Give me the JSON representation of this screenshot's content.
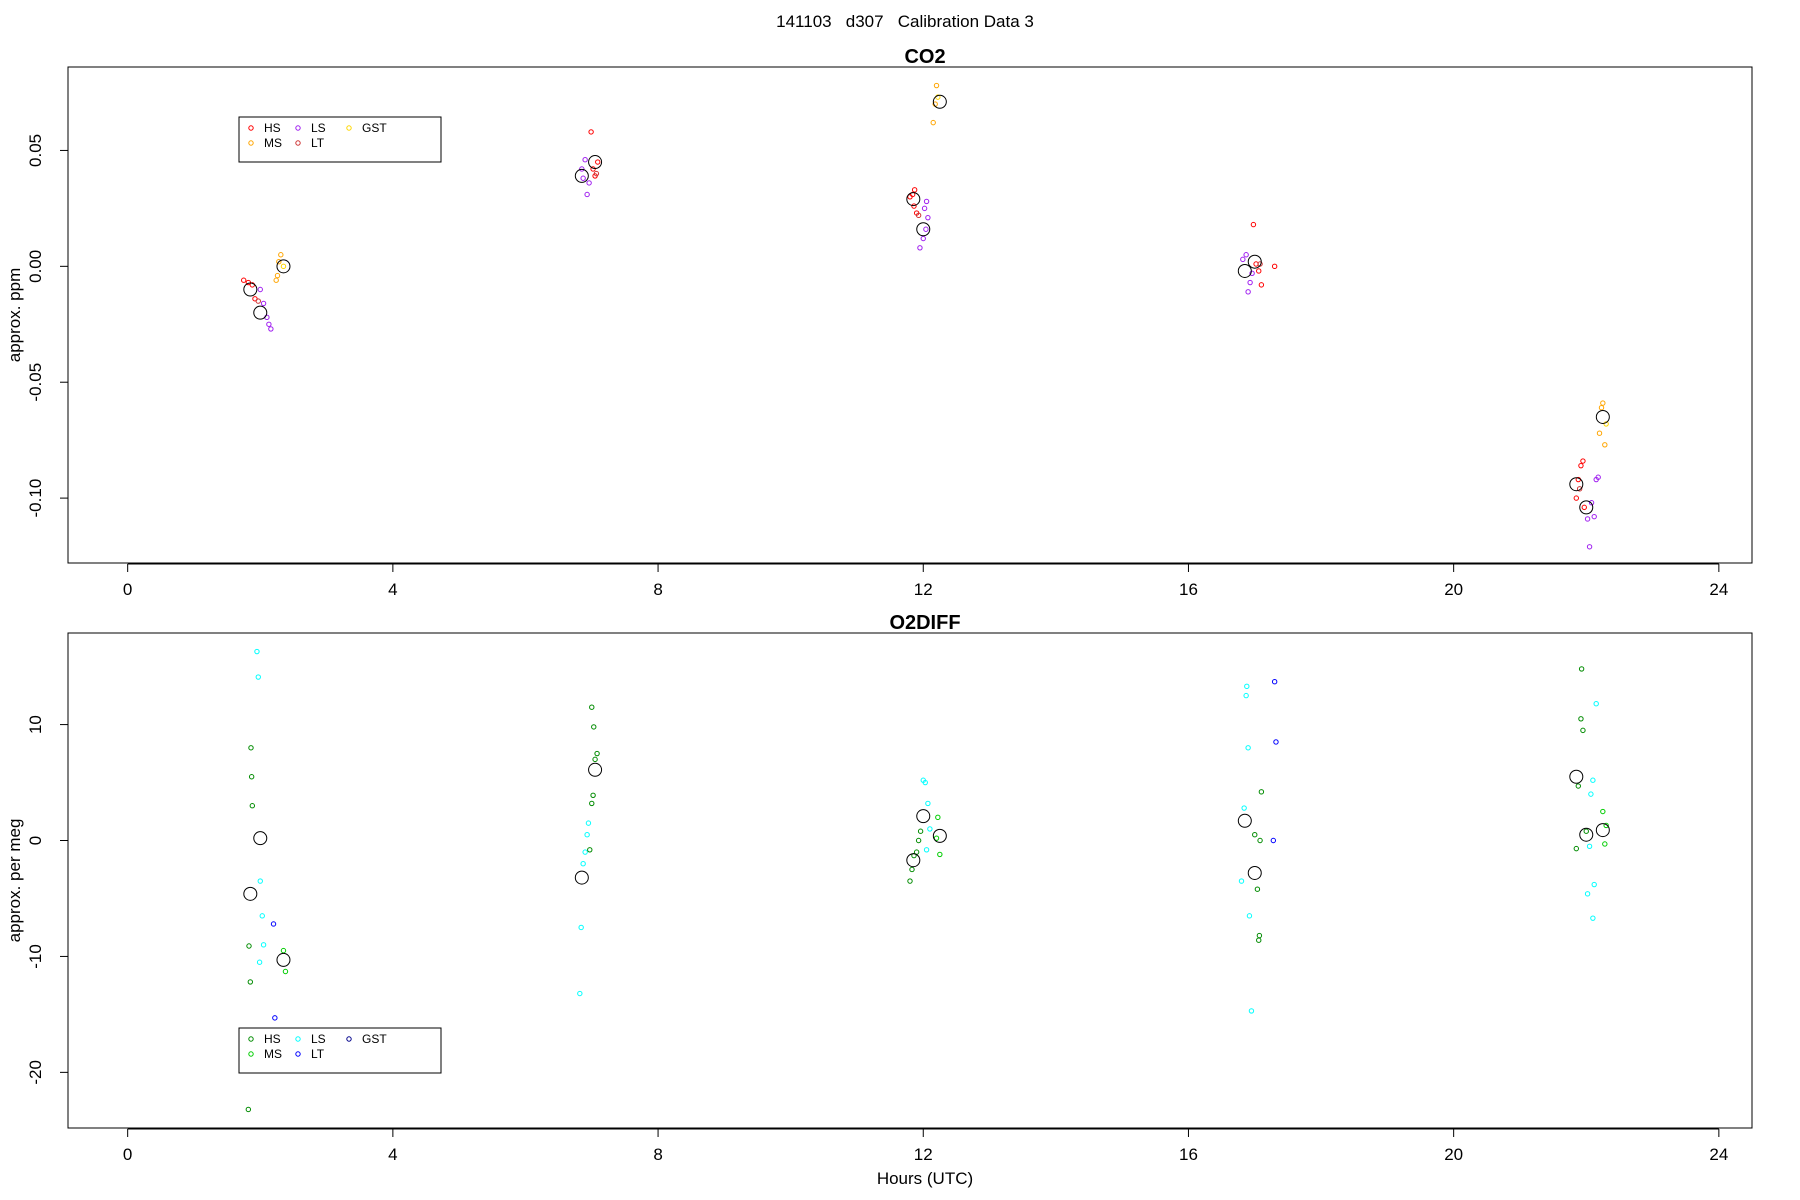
{
  "figure": {
    "suptitle": "141103   d307   Calibration Data 3"
  },
  "chart_data": [
    {
      "type": "scatter",
      "title": "CO2",
      "xlabel": "",
      "ylabel": "approx. ppm",
      "xlim": [
        -0.9,
        24.5
      ],
      "ylim": [
        -0.128,
        0.086
      ],
      "xticks": [
        0,
        4,
        8,
        12,
        16,
        20,
        24
      ],
      "yticks": [
        -0.1,
        -0.05,
        0.0,
        0.05
      ],
      "ytick_labels": [
        "-0.10",
        "-0.05",
        "0.00",
        "0.05"
      ],
      "grid": false,
      "legend": {
        "placement": "top-left",
        "entries": [
          {
            "name": "HS",
            "color": "#ff0000"
          },
          {
            "name": "MS",
            "color": "#ffa500"
          },
          {
            "name": "LS",
            "color": "#a020f0"
          },
          {
            "name": "LT",
            "color": "#cd3333"
          },
          {
            "name": "GST",
            "color": "#ffd700"
          }
        ]
      },
      "points": [
        {
          "x": 1.75,
          "y": -0.006,
          "c": "#ff0000"
        },
        {
          "x": 1.82,
          "y": -0.007,
          "c": "#ff0000"
        },
        {
          "x": 1.88,
          "y": -0.008,
          "c": "#ff0000"
        },
        {
          "x": 1.92,
          "y": -0.014,
          "c": "#ff0000"
        },
        {
          "x": 1.97,
          "y": -0.015,
          "c": "#cd3333"
        },
        {
          "x": 2.0,
          "y": -0.01,
          "c": "#a020f0"
        },
        {
          "x": 2.05,
          "y": -0.016,
          "c": "#a020f0"
        },
        {
          "x": 2.1,
          "y": -0.022,
          "c": "#a020f0"
        },
        {
          "x": 2.13,
          "y": -0.025,
          "c": "#a020f0"
        },
        {
          "x": 2.16,
          "y": -0.027,
          "c": "#a020f0"
        },
        {
          "x": 2.28,
          "y": 0.002,
          "c": "#ffa500"
        },
        {
          "x": 2.31,
          "y": 0.005,
          "c": "#ffa500"
        },
        {
          "x": 2.26,
          "y": -0.004,
          "c": "#ffa500"
        },
        {
          "x": 2.24,
          "y": -0.006,
          "c": "#ffa500"
        },
        {
          "x": 2.35,
          "y": 0.0,
          "c": "#ffd700"
        },
        {
          "x": 6.85,
          "y": 0.042,
          "c": "#a020f0"
        },
        {
          "x": 6.9,
          "y": 0.046,
          "c": "#a020f0"
        },
        {
          "x": 6.93,
          "y": 0.031,
          "c": "#a020f0"
        },
        {
          "x": 6.87,
          "y": 0.038,
          "c": "#a020f0"
        },
        {
          "x": 6.96,
          "y": 0.036,
          "c": "#a020f0"
        },
        {
          "x": 6.99,
          "y": 0.058,
          "c": "#ff0000"
        },
        {
          "x": 7.02,
          "y": 0.042,
          "c": "#ff0000"
        },
        {
          "x": 7.05,
          "y": 0.039,
          "c": "#ff0000"
        },
        {
          "x": 7.07,
          "y": 0.04,
          "c": "#cd3333"
        },
        {
          "x": 7.09,
          "y": 0.045,
          "c": "#ff0000"
        },
        {
          "x": 11.8,
          "y": 0.03,
          "c": "#ff0000"
        },
        {
          "x": 11.84,
          "y": 0.031,
          "c": "#ff0000"
        },
        {
          "x": 11.87,
          "y": 0.033,
          "c": "#ff0000"
        },
        {
          "x": 11.9,
          "y": 0.023,
          "c": "#ff0000"
        },
        {
          "x": 11.93,
          "y": 0.022,
          "c": "#cd3333"
        },
        {
          "x": 11.86,
          "y": 0.026,
          "c": "#ff0000"
        },
        {
          "x": 11.95,
          "y": 0.008,
          "c": "#a020f0"
        },
        {
          "x": 12.0,
          "y": 0.012,
          "c": "#a020f0"
        },
        {
          "x": 12.04,
          "y": 0.016,
          "c": "#a020f0"
        },
        {
          "x": 12.07,
          "y": 0.021,
          "c": "#a020f0"
        },
        {
          "x": 12.02,
          "y": 0.025,
          "c": "#a020f0"
        },
        {
          "x": 12.05,
          "y": 0.028,
          "c": "#a020f0"
        },
        {
          "x": 12.15,
          "y": 0.062,
          "c": "#ffa500"
        },
        {
          "x": 12.18,
          "y": 0.07,
          "c": "#ffa500"
        },
        {
          "x": 12.2,
          "y": 0.078,
          "c": "#ffa500"
        },
        {
          "x": 12.22,
          "y": 0.073,
          "c": "#ffd700"
        },
        {
          "x": 16.82,
          "y": 0.003,
          "c": "#a020f0"
        },
        {
          "x": 16.87,
          "y": 0.005,
          "c": "#a020f0"
        },
        {
          "x": 16.9,
          "y": -0.011,
          "c": "#a020f0"
        },
        {
          "x": 16.93,
          "y": -0.007,
          "c": "#a020f0"
        },
        {
          "x": 16.96,
          "y": -0.003,
          "c": "#a020f0"
        },
        {
          "x": 16.98,
          "y": 0.018,
          "c": "#ff0000"
        },
        {
          "x": 17.02,
          "y": 0.001,
          "c": "#ff0000"
        },
        {
          "x": 17.06,
          "y": -0.002,
          "c": "#ff0000"
        },
        {
          "x": 17.1,
          "y": -0.008,
          "c": "#ff0000"
        },
        {
          "x": 17.3,
          "y": 0.0,
          "c": "#ff0000"
        },
        {
          "x": 17.08,
          "y": 0.001,
          "c": "#cd3333"
        },
        {
          "x": 21.85,
          "y": -0.1,
          "c": "#ff0000"
        },
        {
          "x": 21.88,
          "y": -0.092,
          "c": "#ff0000"
        },
        {
          "x": 21.92,
          "y": -0.086,
          "c": "#ff0000"
        },
        {
          "x": 21.95,
          "y": -0.084,
          "c": "#ff0000"
        },
        {
          "x": 21.97,
          "y": -0.104,
          "c": "#ff0000"
        },
        {
          "x": 21.9,
          "y": -0.096,
          "c": "#cd3333"
        },
        {
          "x": 22.02,
          "y": -0.109,
          "c": "#a020f0"
        },
        {
          "x": 22.05,
          "y": -0.121,
          "c": "#a020f0"
        },
        {
          "x": 22.08,
          "y": -0.102,
          "c": "#a020f0"
        },
        {
          "x": 22.12,
          "y": -0.108,
          "c": "#a020f0"
        },
        {
          "x": 22.15,
          "y": -0.092,
          "c": "#a020f0"
        },
        {
          "x": 22.18,
          "y": -0.091,
          "c": "#a020f0"
        },
        {
          "x": 22.2,
          "y": -0.072,
          "c": "#ffa500"
        },
        {
          "x": 22.23,
          "y": -0.061,
          "c": "#ffa500"
        },
        {
          "x": 22.25,
          "y": -0.059,
          "c": "#ffa500"
        },
        {
          "x": 22.28,
          "y": -0.077,
          "c": "#ffa500"
        },
        {
          "x": 22.3,
          "y": -0.068,
          "c": "#ffd700"
        }
      ],
      "means": [
        {
          "x": 1.85,
          "y": -0.01
        },
        {
          "x": 2.0,
          "y": -0.02
        },
        {
          "x": 2.35,
          "y": 0.0
        },
        {
          "x": 6.85,
          "y": 0.039
        },
        {
          "x": 7.05,
          "y": 0.045
        },
        {
          "x": 11.85,
          "y": 0.029
        },
        {
          "x": 12.0,
          "y": 0.016
        },
        {
          "x": 12.25,
          "y": 0.071
        },
        {
          "x": 16.85,
          "y": -0.002
        },
        {
          "x": 17.0,
          "y": 0.002
        },
        {
          "x": 21.85,
          "y": -0.094
        },
        {
          "x": 22.0,
          "y": -0.104
        },
        {
          "x": 22.25,
          "y": -0.065
        }
      ]
    },
    {
      "type": "scatter",
      "title": "O2DIFF",
      "xlabel": "Hours (UTC)",
      "ylabel": "approx. per meg",
      "xlim": [
        -0.9,
        24.5
      ],
      "ylim": [
        -24.8,
        17.9
      ],
      "xticks": [
        0,
        4,
        8,
        12,
        16,
        20,
        24
      ],
      "yticks": [
        -20,
        -10,
        0,
        10
      ],
      "ytick_labels": [
        "-20",
        "-10",
        "0",
        "10"
      ],
      "grid": false,
      "legend": {
        "placement": "bottom-left",
        "entries": [
          {
            "name": "HS",
            "color": "#008b00"
          },
          {
            "name": "MS",
            "color": "#00cd00"
          },
          {
            "name": "LS",
            "color": "#00ffff"
          },
          {
            "name": "LT",
            "color": "#0000ff"
          },
          {
            "name": "GST",
            "color": "#00008b"
          }
        ]
      },
      "points": [
        {
          "x": 1.82,
          "y": -23.2,
          "c": "#008b00"
        },
        {
          "x": 1.85,
          "y": -12.2,
          "c": "#008b00"
        },
        {
          "x": 1.83,
          "y": -9.1,
          "c": "#008b00"
        },
        {
          "x": 1.88,
          "y": 3.0,
          "c": "#008b00"
        },
        {
          "x": 1.87,
          "y": 5.5,
          "c": "#008b00"
        },
        {
          "x": 1.86,
          "y": 8.0,
          "c": "#008b00"
        },
        {
          "x": 1.95,
          "y": 16.3,
          "c": "#00ffff"
        },
        {
          "x": 1.97,
          "y": 14.1,
          "c": "#00ffff"
        },
        {
          "x": 2.0,
          "y": -3.5,
          "c": "#00ffff"
        },
        {
          "x": 2.03,
          "y": -6.5,
          "c": "#00ffff"
        },
        {
          "x": 2.05,
          "y": -9.0,
          "c": "#00ffff"
        },
        {
          "x": 1.99,
          "y": -10.5,
          "c": "#00ffff"
        },
        {
          "x": 2.2,
          "y": -7.2,
          "c": "#0000ff"
        },
        {
          "x": 2.22,
          "y": -15.3,
          "c": "#0000ff"
        },
        {
          "x": 2.35,
          "y": -9.5,
          "c": "#00cd00"
        },
        {
          "x": 2.38,
          "y": -11.3,
          "c": "#00cd00"
        },
        {
          "x": 6.82,
          "y": -13.2,
          "c": "#00ffff"
        },
        {
          "x": 6.84,
          "y": -7.5,
          "c": "#00ffff"
        },
        {
          "x": 6.87,
          "y": -2.0,
          "c": "#00ffff"
        },
        {
          "x": 6.9,
          "y": -1.0,
          "c": "#00ffff"
        },
        {
          "x": 6.93,
          "y": 0.5,
          "c": "#00ffff"
        },
        {
          "x": 6.95,
          "y": 1.5,
          "c": "#00ffff"
        },
        {
          "x": 6.97,
          "y": -0.8,
          "c": "#008b00"
        },
        {
          "x": 7.0,
          "y": 3.2,
          "c": "#008b00"
        },
        {
          "x": 7.02,
          "y": 3.9,
          "c": "#008b00"
        },
        {
          "x": 7.05,
          "y": 7.0,
          "c": "#008b00"
        },
        {
          "x": 7.08,
          "y": 7.5,
          "c": "#008b00"
        },
        {
          "x": 7.03,
          "y": 9.8,
          "c": "#008b00"
        },
        {
          "x": 7.0,
          "y": 11.5,
          "c": "#008b00"
        },
        {
          "x": 11.8,
          "y": -3.5,
          "c": "#008b00"
        },
        {
          "x": 11.83,
          "y": -2.5,
          "c": "#008b00"
        },
        {
          "x": 11.86,
          "y": -1.3,
          "c": "#008b00"
        },
        {
          "x": 11.9,
          "y": -1.0,
          "c": "#008b00"
        },
        {
          "x": 11.93,
          "y": 0.0,
          "c": "#008b00"
        },
        {
          "x": 11.96,
          "y": 0.8,
          "c": "#008b00"
        },
        {
          "x": 12.0,
          "y": 5.2,
          "c": "#00ffff"
        },
        {
          "x": 12.03,
          "y": 5.0,
          "c": "#00ffff"
        },
        {
          "x": 12.07,
          "y": 3.2,
          "c": "#00ffff"
        },
        {
          "x": 12.05,
          "y": -0.8,
          "c": "#00ffff"
        },
        {
          "x": 12.1,
          "y": 1.0,
          "c": "#00ffff"
        },
        {
          "x": 12.22,
          "y": 2.0,
          "c": "#00cd00"
        },
        {
          "x": 12.25,
          "y": -1.2,
          "c": "#00cd00"
        },
        {
          "x": 12.2,
          "y": 0.2,
          "c": "#00cd00"
        },
        {
          "x": 16.8,
          "y": -3.5,
          "c": "#00ffff"
        },
        {
          "x": 16.84,
          "y": 2.8,
          "c": "#00ffff"
        },
        {
          "x": 16.87,
          "y": 12.5,
          "c": "#00ffff"
        },
        {
          "x": 16.88,
          "y": 13.3,
          "c": "#00ffff"
        },
        {
          "x": 16.9,
          "y": 8.0,
          "c": "#00ffff"
        },
        {
          "x": 16.92,
          "y": -6.5,
          "c": "#00ffff"
        },
        {
          "x": 16.95,
          "y": -14.7,
          "c": "#00ffff"
        },
        {
          "x": 17.0,
          "y": 0.5,
          "c": "#008b00"
        },
        {
          "x": 17.04,
          "y": -4.2,
          "c": "#008b00"
        },
        {
          "x": 17.07,
          "y": -8.2,
          "c": "#008b00"
        },
        {
          "x": 17.06,
          "y": -8.6,
          "c": "#008b00"
        },
        {
          "x": 17.1,
          "y": 4.2,
          "c": "#008b00"
        },
        {
          "x": 17.08,
          "y": 0.0,
          "c": "#008b00"
        },
        {
          "x": 17.3,
          "y": 13.7,
          "c": "#0000ff"
        },
        {
          "x": 17.32,
          "y": 8.5,
          "c": "#0000ff"
        },
        {
          "x": 17.28,
          "y": 0.0,
          "c": "#0000ff"
        },
        {
          "x": 21.85,
          "y": -0.7,
          "c": "#008b00"
        },
        {
          "x": 21.88,
          "y": 4.7,
          "c": "#008b00"
        },
        {
          "x": 21.92,
          "y": 10.5,
          "c": "#008b00"
        },
        {
          "x": 21.95,
          "y": 9.5,
          "c": "#008b00"
        },
        {
          "x": 21.93,
          "y": 14.8,
          "c": "#008b00"
        },
        {
          "x": 22.0,
          "y": 0.8,
          "c": "#008b00"
        },
        {
          "x": 22.02,
          "y": -4.6,
          "c": "#00ffff"
        },
        {
          "x": 22.05,
          "y": -0.5,
          "c": "#00ffff"
        },
        {
          "x": 22.07,
          "y": 4.0,
          "c": "#00ffff"
        },
        {
          "x": 22.1,
          "y": 5.2,
          "c": "#00ffff"
        },
        {
          "x": 22.12,
          "y": -3.8,
          "c": "#00ffff"
        },
        {
          "x": 22.1,
          "y": -6.7,
          "c": "#00ffff"
        },
        {
          "x": 22.15,
          "y": 11.8,
          "c": "#00ffff"
        },
        {
          "x": 22.25,
          "y": 2.5,
          "c": "#00cd00"
        },
        {
          "x": 22.28,
          "y": -0.3,
          "c": "#00cd00"
        },
        {
          "x": 22.3,
          "y": 1.3,
          "c": "#00cd00"
        }
      ],
      "means": [
        {
          "x": 1.85,
          "y": -4.6
        },
        {
          "x": 2.0,
          "y": 0.2
        },
        {
          "x": 2.35,
          "y": -10.3
        },
        {
          "x": 6.85,
          "y": -3.2
        },
        {
          "x": 7.05,
          "y": 6.1
        },
        {
          "x": 11.85,
          "y": -1.7
        },
        {
          "x": 12.0,
          "y": 2.1
        },
        {
          "x": 12.25,
          "y": 0.4
        },
        {
          "x": 16.85,
          "y": 1.7
        },
        {
          "x": 17.0,
          "y": -2.8
        },
        {
          "x": 21.85,
          "y": 5.5
        },
        {
          "x": 22.0,
          "y": 0.5
        },
        {
          "x": 22.25,
          "y": 0.9
        }
      ]
    }
  ]
}
